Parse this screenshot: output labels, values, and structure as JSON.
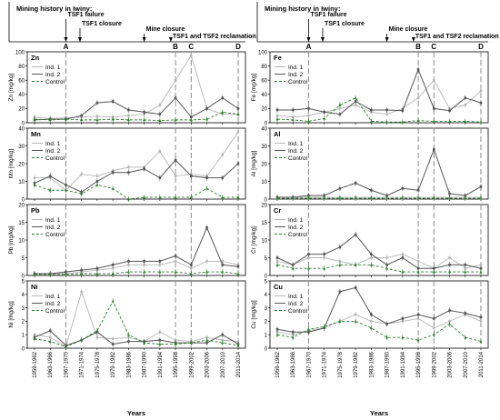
{
  "figure": {
    "x_axis_title": "Years",
    "timeline_heading": "Mining history in Iwiny:",
    "timeline_events": [
      {
        "text": "TSF1 failure"
      },
      {
        "text": "TSF1 closure"
      },
      {
        "text": "Mine closure"
      },
      {
        "text": "TSF1 and TSF2 reclamation"
      }
    ],
    "period_markers": [
      "A",
      "B",
      "C",
      "D"
    ],
    "categories": [
      "1959-1962",
      "1963-1966",
      "1967-1970",
      "1971-1974",
      "1975-1978",
      "1979-1982",
      "1983-1986",
      "1987-1990",
      "1991-1994",
      "1995-1998",
      "1999-2002",
      "2003-2006",
      "2007-2010",
      "2011-2014"
    ],
    "legend_labels": [
      "Ind. 1",
      "Ind. 2",
      "Control"
    ],
    "unit_label": "[mg/kg]",
    "colors": {
      "ind1": "#b5b5b5",
      "ind2": "#555555",
      "control": "#2e7d32",
      "dashed_marker": "#8a8a8a"
    }
  },
  "chart_data": [
    {
      "type": "line",
      "title": "Zn",
      "ylabel": "Zn [mg/kg]",
      "ylim": [
        0,
        100
      ],
      "yticks": [
        "0",
        "20",
        "40",
        "60",
        "80",
        "100"
      ],
      "series": [
        {
          "name": "Ind. 1",
          "values": [
            8,
            6,
            7,
            8,
            9,
            8,
            10,
            12,
            25,
            60,
            95,
            20,
            12,
            12
          ]
        },
        {
          "name": "Ind. 2",
          "values": [
            4,
            5,
            5,
            10,
            28,
            30,
            18,
            15,
            12,
            35,
            8,
            20,
            35,
            20
          ]
        },
        {
          "name": "Control",
          "values": [
            5,
            4,
            5,
            4,
            4,
            5,
            4,
            4,
            3,
            4,
            4,
            5,
            15,
            12
          ]
        }
      ]
    },
    {
      "type": "line",
      "title": "Mn",
      "ylabel": "Mn [mg/kg]",
      "ylim": [
        0,
        40
      ],
      "yticks": [
        "0",
        "10",
        "20",
        "30",
        "40"
      ],
      "series": [
        {
          "name": "Ind. 1",
          "values": [
            12,
            12,
            5,
            14,
            13,
            16,
            18,
            18,
            27,
            13,
            14,
            13,
            25,
            38
          ]
        },
        {
          "name": "Ind. 2",
          "values": [
            9,
            13,
            8,
            4,
            10,
            15,
            15,
            17,
            12,
            22,
            13,
            12,
            12,
            20
          ]
        },
        {
          "name": "Control",
          "values": [
            8,
            5,
            5,
            3,
            8,
            6,
            0,
            1,
            1,
            1,
            1,
            6,
            1,
            1
          ]
        }
      ]
    },
    {
      "type": "line",
      "title": "Pb",
      "ylabel": "Pb [mg/kg]",
      "ylim": [
        0,
        20
      ],
      "yticks": [
        "0",
        "5",
        "10",
        "15",
        "20"
      ],
      "series": [
        {
          "name": "Ind. 1",
          "values": [
            0.5,
            0.5,
            0.5,
            1,
            1.5,
            2,
            3,
            3,
            3,
            4,
            2,
            4,
            4,
            3
          ]
        },
        {
          "name": "Ind. 2",
          "values": [
            0.5,
            0.5,
            1,
            1.5,
            2,
            3,
            4,
            4,
            4,
            5.5,
            3,
            13.5,
            3,
            2.5
          ]
        },
        {
          "name": "Control",
          "values": [
            0.3,
            0.3,
            0.3,
            0.5,
            0.5,
            0.5,
            1,
            1,
            1,
            1,
            0.5,
            1,
            1,
            0.5
          ]
        }
      ]
    },
    {
      "type": "line",
      "title": "Ni",
      "ylabel": "Ni [mg/kg]",
      "ylim": [
        0,
        5
      ],
      "yticks": [
        "0",
        "1",
        "2",
        "3",
        "4",
        "5"
      ],
      "series": [
        {
          "name": "Ind. 1",
          "values": [
            1,
            0.8,
            0.1,
            4.2,
            0.8,
            0.7,
            0.8,
            0.5,
            1.2,
            0.6,
            0.5,
            0.8,
            0.6,
            0.5
          ]
        },
        {
          "name": "Ind. 2",
          "values": [
            0.8,
            1.3,
            0.2,
            0.6,
            1.2,
            0.3,
            0.5,
            0.5,
            0.6,
            0.4,
            0.4,
            0.4,
            1.0,
            0.3
          ]
        },
        {
          "name": "Control",
          "values": [
            0.7,
            0.5,
            0.1,
            0.6,
            1.3,
            3.5,
            1.0,
            0.4,
            0.3,
            0.3,
            0.4,
            0.6,
            0.4,
            0.2
          ]
        }
      ]
    },
    {
      "type": "line",
      "title": "Fe",
      "ylabel": "Fe [mg/kg]",
      "ylim": [
        0,
        100
      ],
      "yticks": [
        "0",
        "20",
        "40",
        "60",
        "80",
        "100"
      ],
      "series": [
        {
          "name": "Ind. 1",
          "values": [
            10,
            8,
            10,
            15,
            20,
            25,
            15,
            12,
            20,
            35,
            60,
            20,
            25,
            45
          ]
        },
        {
          "name": "Ind. 2",
          "values": [
            18,
            18,
            20,
            15,
            12,
            30,
            18,
            18,
            17,
            75,
            20,
            17,
            35,
            28
          ]
        },
        {
          "name": "Control",
          "values": [
            5,
            4,
            2,
            6,
            25,
            35,
            2,
            1,
            1,
            3,
            2,
            2,
            2,
            1
          ]
        }
      ]
    },
    {
      "type": "line",
      "title": "Al",
      "ylabel": "Al [mg/kg]",
      "ylim": [
        0,
        40
      ],
      "yticks": [
        "0",
        "10",
        "20",
        "30",
        "40"
      ],
      "series": [
        {
          "name": "Ind. 1",
          "values": [
            1,
            1,
            1,
            1,
            1,
            1,
            1,
            1,
            1,
            1,
            1,
            1,
            1,
            1
          ]
        },
        {
          "name": "Ind. 2",
          "values": [
            1,
            1,
            2,
            2,
            6,
            9,
            5,
            2,
            6,
            5,
            28,
            3,
            2,
            7
          ]
        },
        {
          "name": "Control",
          "values": [
            0.5,
            0.5,
            0.5,
            0.5,
            0.5,
            0.5,
            0.5,
            0.5,
            0.5,
            0.5,
            0.5,
            0.5,
            0.5,
            0.5
          ]
        }
      ]
    },
    {
      "type": "line",
      "title": "Cr",
      "ylabel": "Cr [mg/kg]",
      "ylim": [
        0,
        20
      ],
      "yticks": [
        "0",
        "5",
        "10",
        "15",
        "20"
      ],
      "series": [
        {
          "name": "Ind. 1",
          "values": [
            4,
            3,
            5,
            5,
            4,
            3,
            5,
            5,
            6,
            4,
            2,
            5,
            2,
            3
          ]
        },
        {
          "name": "Ind. 2",
          "values": [
            5,
            3,
            6,
            6,
            8,
            11.5,
            6,
            3,
            5,
            2,
            2,
            3,
            3,
            2
          ]
        },
        {
          "name": "Control",
          "values": [
            3,
            2,
            2,
            2,
            3,
            3,
            3,
            2,
            1,
            1,
            1,
            1,
            1,
            1
          ]
        }
      ]
    },
    {
      "type": "line",
      "title": "Cu",
      "ylabel": "Cu [mg/kg]",
      "ylim": [
        0,
        5
      ],
      "yticks": [
        "0",
        "1",
        "2",
        "3",
        "4",
        "5"
      ],
      "series": [
        {
          "name": "Ind. 1",
          "values": [
            1.2,
            1.0,
            1.3,
            1.5,
            2.0,
            2.5,
            2.0,
            1.8,
            2.0,
            2.2,
            1.5,
            2.0,
            2.5,
            2.0
          ]
        },
        {
          "name": "Ind. 2",
          "values": [
            1.4,
            1.2,
            1.2,
            1.5,
            4.2,
            4.5,
            2.5,
            1.8,
            2.2,
            2.5,
            2.2,
            2.8,
            2.6,
            2.3
          ]
        },
        {
          "name": "Control",
          "values": [
            1.0,
            0.8,
            1.4,
            1.6,
            2.0,
            2.0,
            1.5,
            0.8,
            0.8,
            0.6,
            1.0,
            1.8,
            0.8,
            0.5
          ]
        }
      ]
    }
  ]
}
